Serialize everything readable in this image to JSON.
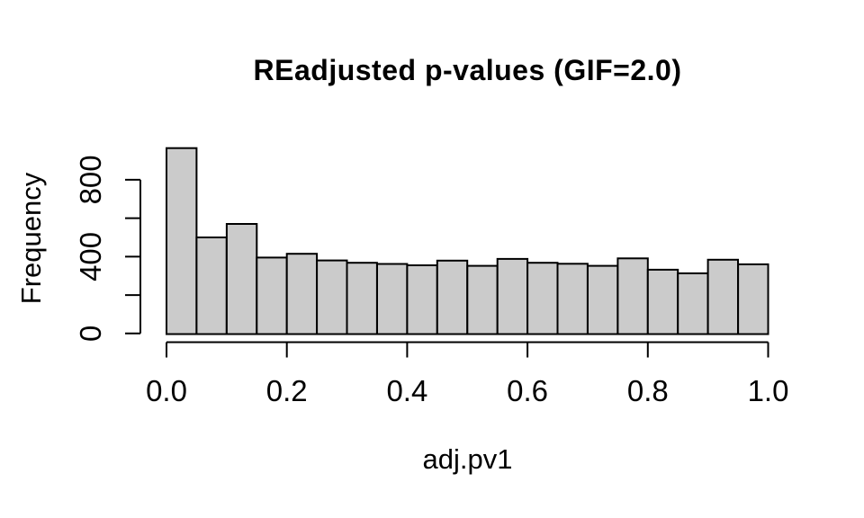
{
  "chart_data": {
    "type": "bar",
    "subtype": "histogram",
    "title": "REadjusted p-values (GIF=2.0)",
    "xlabel": "adj.pv1",
    "ylabel": "Frequency",
    "xlim": [
      0.0,
      1.0
    ],
    "ylim": [
      0,
      1000
    ],
    "grid": false,
    "legend": "none",
    "bin_width": 0.05,
    "bin_starts": [
      0.0,
      0.05,
      0.1,
      0.15,
      0.2,
      0.25,
      0.3,
      0.35,
      0.4,
      0.45,
      0.5,
      0.55,
      0.6,
      0.65,
      0.7,
      0.75,
      0.8,
      0.85,
      0.9,
      0.95
    ],
    "values": [
      965,
      500,
      570,
      395,
      415,
      380,
      368,
      362,
      355,
      379,
      352,
      388,
      368,
      363,
      352,
      391,
      332,
      313,
      384,
      360
    ],
    "x_ticks": [
      {
        "v": 0.0,
        "label": "0.0"
      },
      {
        "v": 0.2,
        "label": "0.2"
      },
      {
        "v": 0.4,
        "label": "0.4"
      },
      {
        "v": 0.6,
        "label": "0.6"
      },
      {
        "v": 0.8,
        "label": "0.8"
      },
      {
        "v": 1.0,
        "label": "1.0"
      }
    ],
    "y_ticks": [
      {
        "v": 0,
        "label": "0"
      },
      {
        "v": 200,
        "label": ""
      },
      {
        "v": 400,
        "label": "400"
      },
      {
        "v": 600,
        "label": ""
      },
      {
        "v": 800,
        "label": "800"
      }
    ],
    "colors": {
      "bar_fill": "#cbcbcb",
      "bar_stroke": "#000000",
      "axis": "#000000",
      "text": "#000000",
      "background": "#ffffff"
    }
  }
}
